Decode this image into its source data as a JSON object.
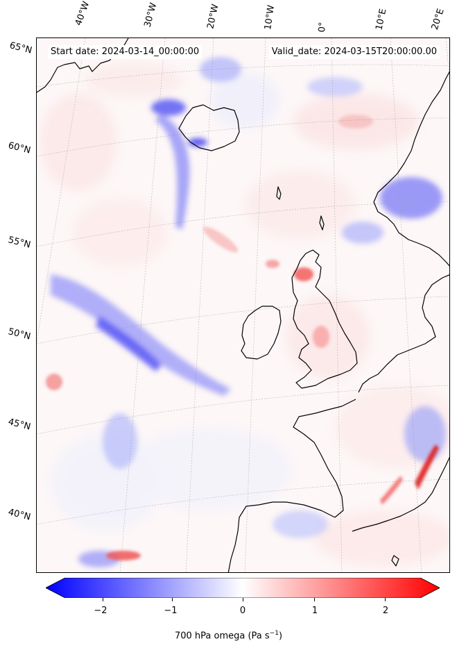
{
  "header": {
    "start_date": "Start date: 2024-03-14_00:00:00",
    "valid_date": "Valid_date: 2024-03-15T20:00:00.00"
  },
  "map": {
    "longitude_labels": [
      "40°W",
      "30°W",
      "20°W",
      "10°W",
      "0°",
      "10°E",
      "20°E"
    ],
    "latitude_labels": [
      "65°N",
      "60°N",
      "55°N",
      "50°N",
      "45°N",
      "40°N"
    ],
    "features": [
      "iceland",
      "ireland",
      "great-britain",
      "scandinavia",
      "western-europe",
      "iberia"
    ]
  },
  "colorbar": {
    "ticks": [
      "−2",
      "−1",
      "0",
      "1",
      "2"
    ],
    "label_main": "700 hPa omega (Pa s",
    "label_sup": "−1",
    "label_end": ")",
    "min_color": "#0000ff",
    "mid_color": "#ffffff",
    "max_color": "#ff0000",
    "range": [
      -2.6,
      2.6
    ]
  }
}
